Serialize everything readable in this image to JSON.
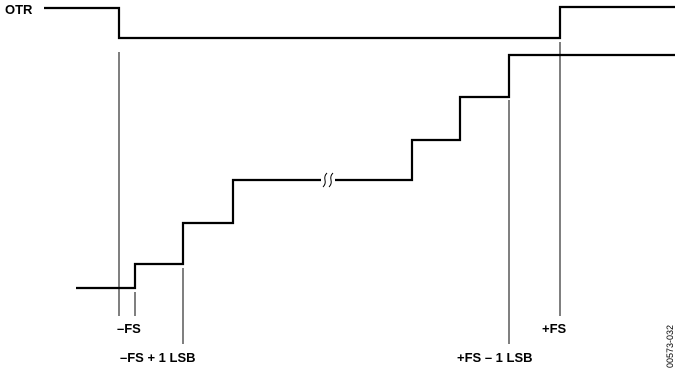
{
  "signal_label": "OTR",
  "markers": {
    "neg_fs": "–FS",
    "neg_fs_plus_lsb": "–FS + 1 LSB",
    "pos_fs": "+FS",
    "pos_fs_minus_lsb": "+FS – 1 LSB"
  },
  "document_id": "00573-032"
}
